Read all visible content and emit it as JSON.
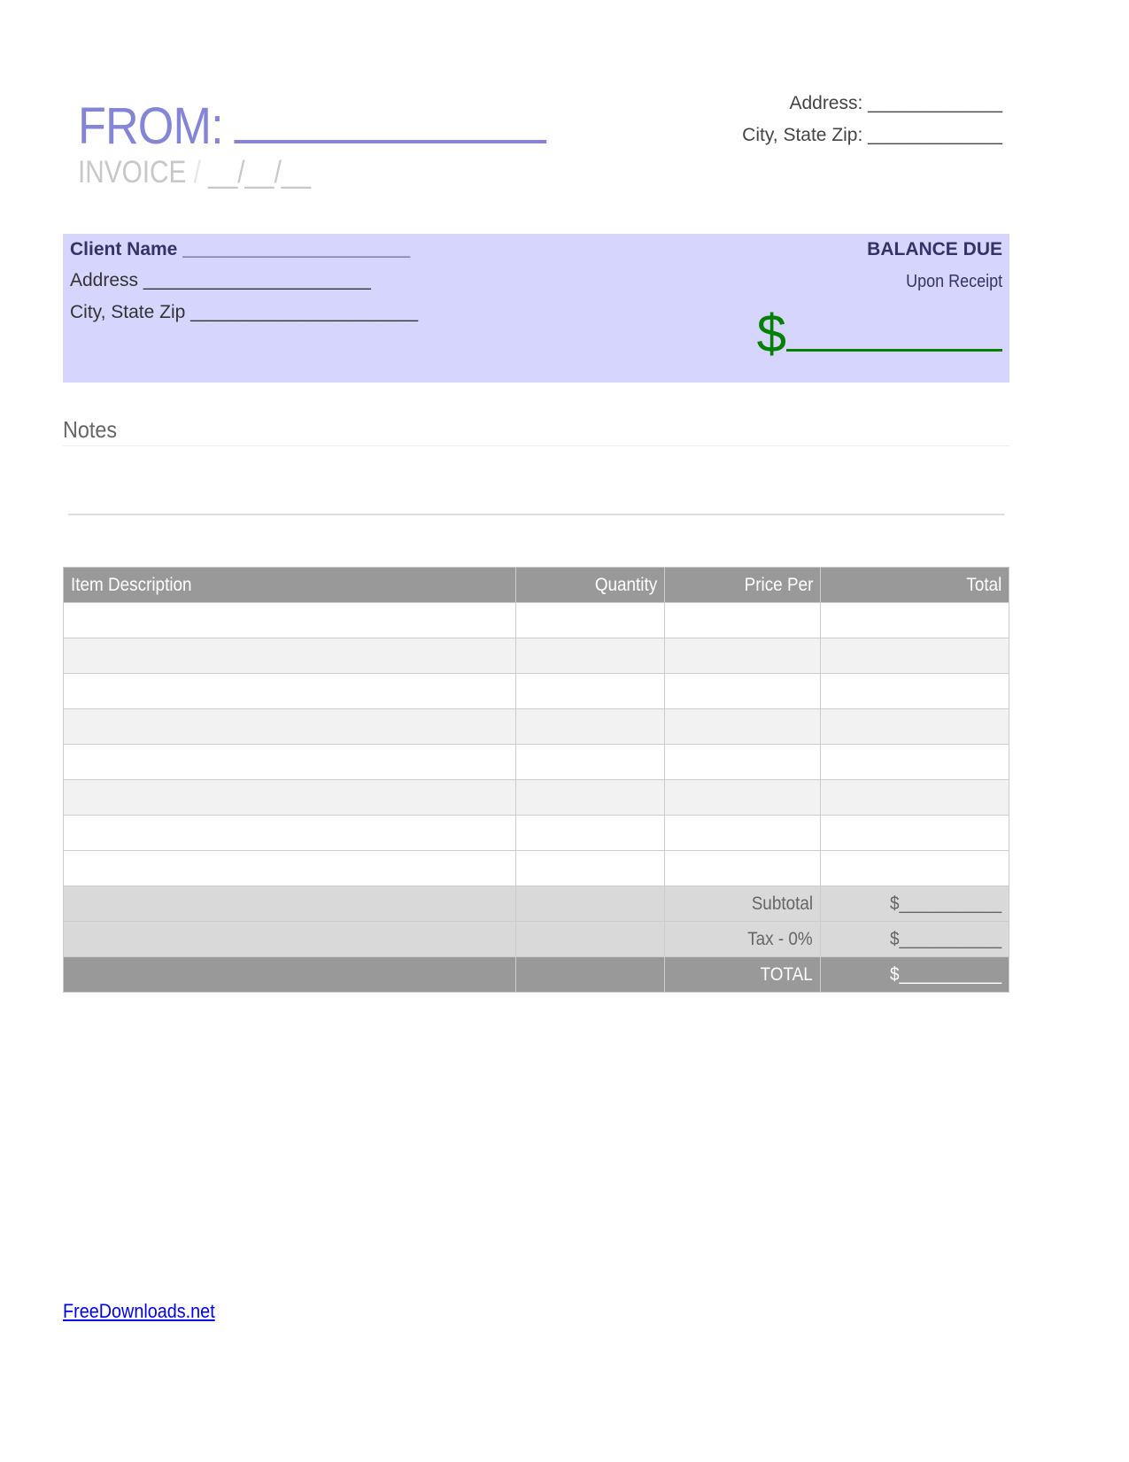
{
  "header": {
    "from_label": "FROM:",
    "invoice_label": "INVOICE",
    "date_sep": "/",
    "date_placeholder": "__/__/__",
    "address_line": "Address: _____________",
    "city_line": "City, State Zip: _____________"
  },
  "client": {
    "name": "Client Name ______________________",
    "address": "Address ______________________",
    "city": "City, State Zip ______________________"
  },
  "balance": {
    "title": "BALANCE DUE",
    "terms": "Upon Receipt",
    "currency": "$"
  },
  "notes": {
    "label": "Notes"
  },
  "table": {
    "headers": [
      "Item Description",
      "Quantity",
      "Price Per",
      "Total"
    ],
    "item_rows": 8,
    "summary": [
      {
        "label": "Subtotal",
        "value": "$___________"
      },
      {
        "label": "Tax - 0%",
        "value": "$___________"
      },
      {
        "label": "TOTAL",
        "value": "$___________"
      }
    ]
  },
  "footer": {
    "link": "FreeDownloads.net"
  },
  "colors": {
    "accent": "#8585d6",
    "band": "#d5d5fe",
    "money": "#008000",
    "header_gray": "#999999"
  }
}
